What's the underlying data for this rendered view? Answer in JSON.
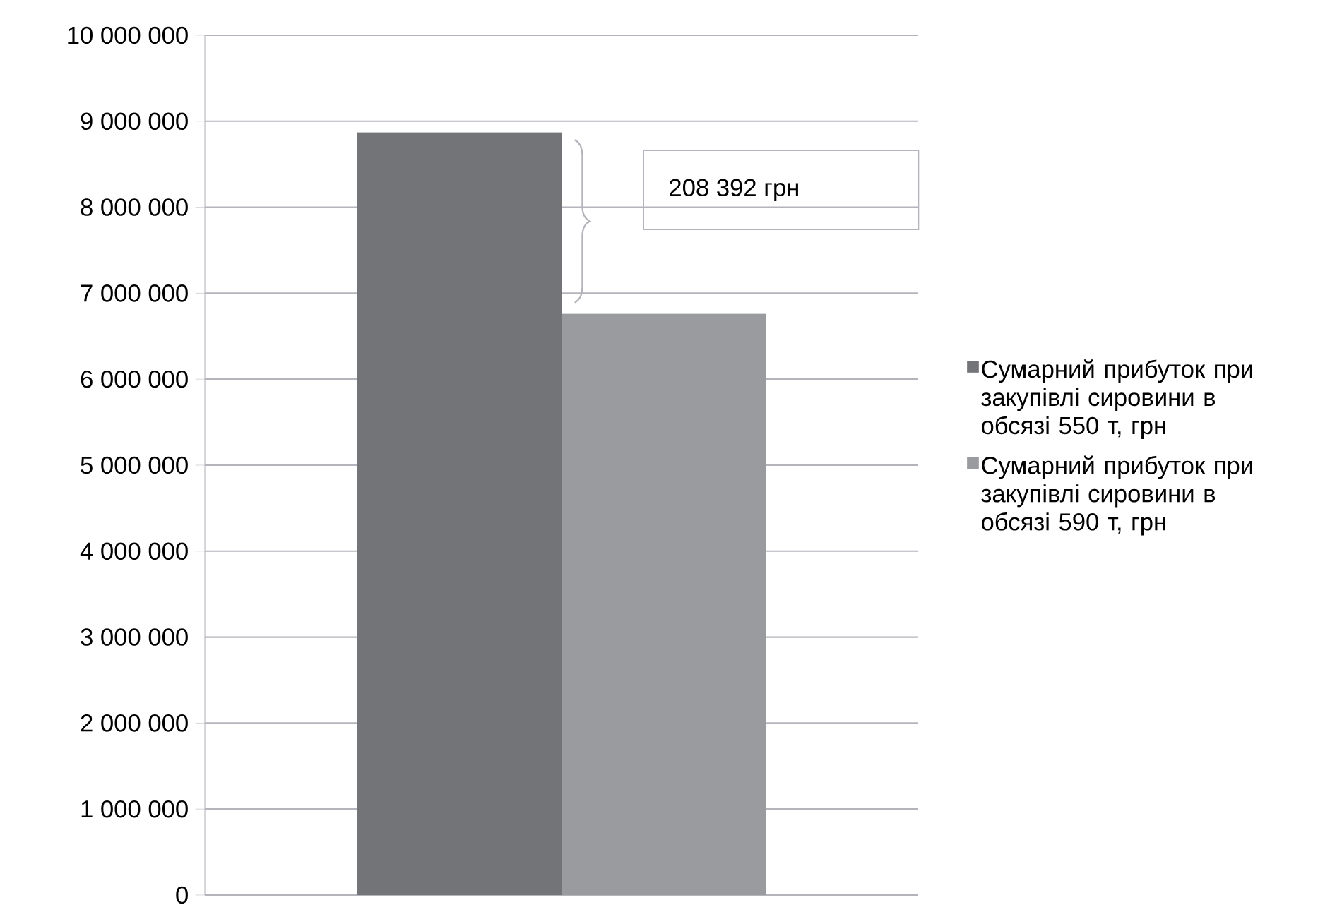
{
  "chart_data": {
    "type": "bar",
    "categories": [
      null
    ],
    "series": [
      {
        "name": "Сумарний прибуток при закупівлі сировини в обсязі 550 т, грн",
        "color": "#737478",
        "values": [
          8870000
        ]
      },
      {
        "name": "Сумарний прибуток при закупівлі сировини в обсязі 590 т, грн",
        "color": "#9a9b9f",
        "values": [
          6760000
        ]
      }
    ],
    "ylim": [
      0,
      10000000
    ],
    "yticks": [
      {
        "value": 0,
        "label": "0"
      },
      {
        "value": 1000000,
        "label": "1 000 000"
      },
      {
        "value": 2000000,
        "label": "2 000 000"
      },
      {
        "value": 3000000,
        "label": "3 000 000"
      },
      {
        "value": 4000000,
        "label": "4 000 000"
      },
      {
        "value": 5000000,
        "label": "5 000 000"
      },
      {
        "value": 6000000,
        "label": "6 000 000"
      },
      {
        "value": 7000000,
        "label": "7 000 000"
      },
      {
        "value": 8000000,
        "label": "8 000 000"
      },
      {
        "value": 9000000,
        "label": "9 000 000"
      },
      {
        "value": 10000000,
        "label": "10 000 000"
      }
    ],
    "grid": "y",
    "legend": "right",
    "annotations": [
      "208 392 грн"
    ]
  }
}
